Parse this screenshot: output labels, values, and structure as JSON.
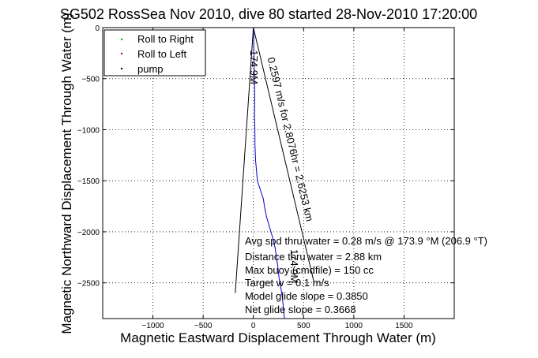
{
  "chart_data": {
    "type": "line",
    "title": "SG502 RossSea Nov 2010, dive 80 started 28-Nov-2010 17:20:00",
    "xlabel": "Magnetic Eastward Displacement Through Water (m)",
    "ylabel": "Magnetic Northward Displacement Through Water (m)",
    "xlim": [
      -1500,
      2000
    ],
    "ylim": [
      -2850,
      0
    ],
    "xticks": [
      -1000,
      -500,
      0,
      500,
      1000,
      1500
    ],
    "yticks": [
      0,
      -500,
      -1000,
      -1500,
      -2000,
      -2500
    ],
    "xtick_labels": [
      "−1000",
      "−500",
      "0",
      "500",
      "1000",
      "1500"
    ],
    "ytick_labels": [
      "0",
      "−500",
      "−1000",
      "−1500",
      "−2000",
      "−2500"
    ],
    "grid": true,
    "legend_position": "top-left",
    "legend": [
      {
        "label": "Roll to Right",
        "color": "#00bb00",
        "marker": "dot"
      },
      {
        "label": "Roll to Left",
        "color": "#dd0000",
        "marker": "dot"
      },
      {
        "label": "pump",
        "color": "#000000",
        "marker": "dot"
      }
    ],
    "series": [
      {
        "color": "#0000cc",
        "x": [
          0,
          2,
          4,
          3,
          5,
          8,
          12,
          14,
          12,
          15,
          16,
          22,
          40,
          60,
          80,
          100,
          110,
          130,
          160,
          190,
          215,
          230,
          245,
          255,
          265,
          275,
          285,
          295,
          300,
          310
        ],
        "y": [
          0,
          -20,
          -60,
          -120,
          -250,
          -400,
          -550,
          -700,
          -850,
          -1000,
          -1150,
          -1300,
          -1500,
          -1560,
          -1620,
          -1680,
          -1750,
          -1850,
          -1950,
          -2050,
          -2150,
          -2250,
          -2350,
          -2450,
          -2500,
          -2560,
          -2620,
          -2700,
          -2770,
          -2850
        ]
      }
    ],
    "reference_lines": [
      {
        "color": "#000000",
        "x": [
          -180,
          0,
          600
        ],
        "y": [
          -2600,
          0,
          -2480
        ]
      }
    ],
    "plot_labels": [
      {
        "text": "174.9M",
        "x": -30,
        "y": -220
      },
      {
        "text": "0.2597 m/s for 2.8076hr = 2.6253 km",
        "x": 140,
        "y": -300
      },
      {
        "text": "174.9M",
        "x": 370,
        "y": -2170
      }
    ],
    "annotations": [
      "Avg spd thru water =  0.28 m/s @ 173.9    °M (206.9 °T)",
      "Distance thru water =  2.88 km",
      "Max buoy (cmdfile) = 150 cc",
      "Target w = 0.1 m/s",
      "Model glide slope = 0.3850",
      "Net glide slope = 0.3668"
    ]
  },
  "colors": {
    "axes": "#000000",
    "grid": "#000000",
    "track": "#0000cc",
    "reference": "#000000"
  }
}
